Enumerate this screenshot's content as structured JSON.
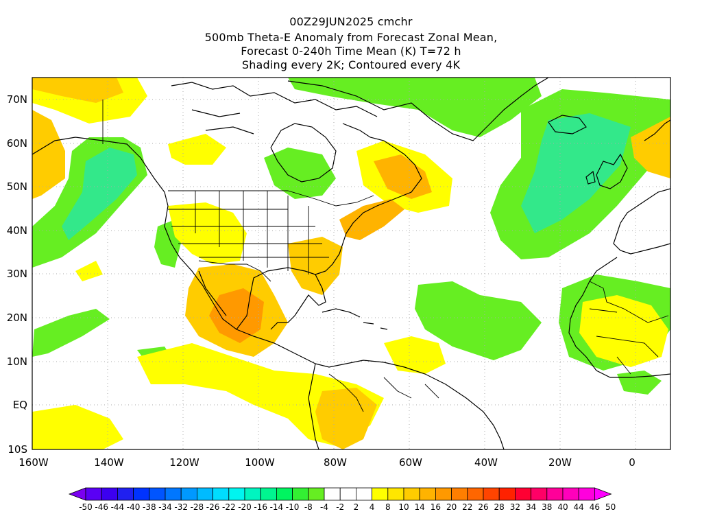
{
  "header": {
    "line1": "00Z29JUN2025 cmchr",
    "line2": "500mb Theta-E Anomaly from Forecast Zonal Mean,",
    "line3": "Forecast 0-240h Time Mean (K) T=72 h",
    "line4": "Shading every 2K; Contoured every 4K"
  },
  "axes": {
    "lat_labels": [
      "70N",
      "60N",
      "50N",
      "40N",
      "30N",
      "20N",
      "10N",
      "EQ",
      "10S"
    ],
    "lon_labels": [
      "160W",
      "140W",
      "120W",
      "100W",
      "80W",
      "60W",
      "40W",
      "20W",
      "0"
    ]
  },
  "colorbar": {
    "labels": [
      "-50",
      "-46",
      "-44",
      "-40",
      "-38",
      "-34",
      "-32",
      "-28",
      "-26",
      "-22",
      "-20",
      "-16",
      "-14",
      "-10",
      "-8",
      "-4",
      "-2",
      "2",
      "4",
      "8",
      "10",
      "14",
      "16",
      "20",
      "22",
      "26",
      "28",
      "32",
      "34",
      "38",
      "40",
      "44",
      "46",
      "50"
    ],
    "colors": [
      "#7a00f0",
      "#5a00f5",
      "#3c00f0",
      "#2020f0",
      "#0033ff",
      "#0055ff",
      "#0077ff",
      "#0099ff",
      "#00bbff",
      "#00ddff",
      "#00f5f0",
      "#00f5c0",
      "#00f590",
      "#00f560",
      "#33f033",
      "#66ee22",
      "#ffffff",
      "#ffffff",
      "#ffffff",
      "#ffff00",
      "#ffe600",
      "#ffcc00",
      "#ffb300",
      "#ff9900",
      "#ff7f00",
      "#ff6600",
      "#ff4400",
      "#ff2200",
      "#ff0033",
      "#ff0066",
      "#ff0099",
      "#ff00bb",
      "#ff00dd",
      "#ff00ff"
    ]
  }
}
